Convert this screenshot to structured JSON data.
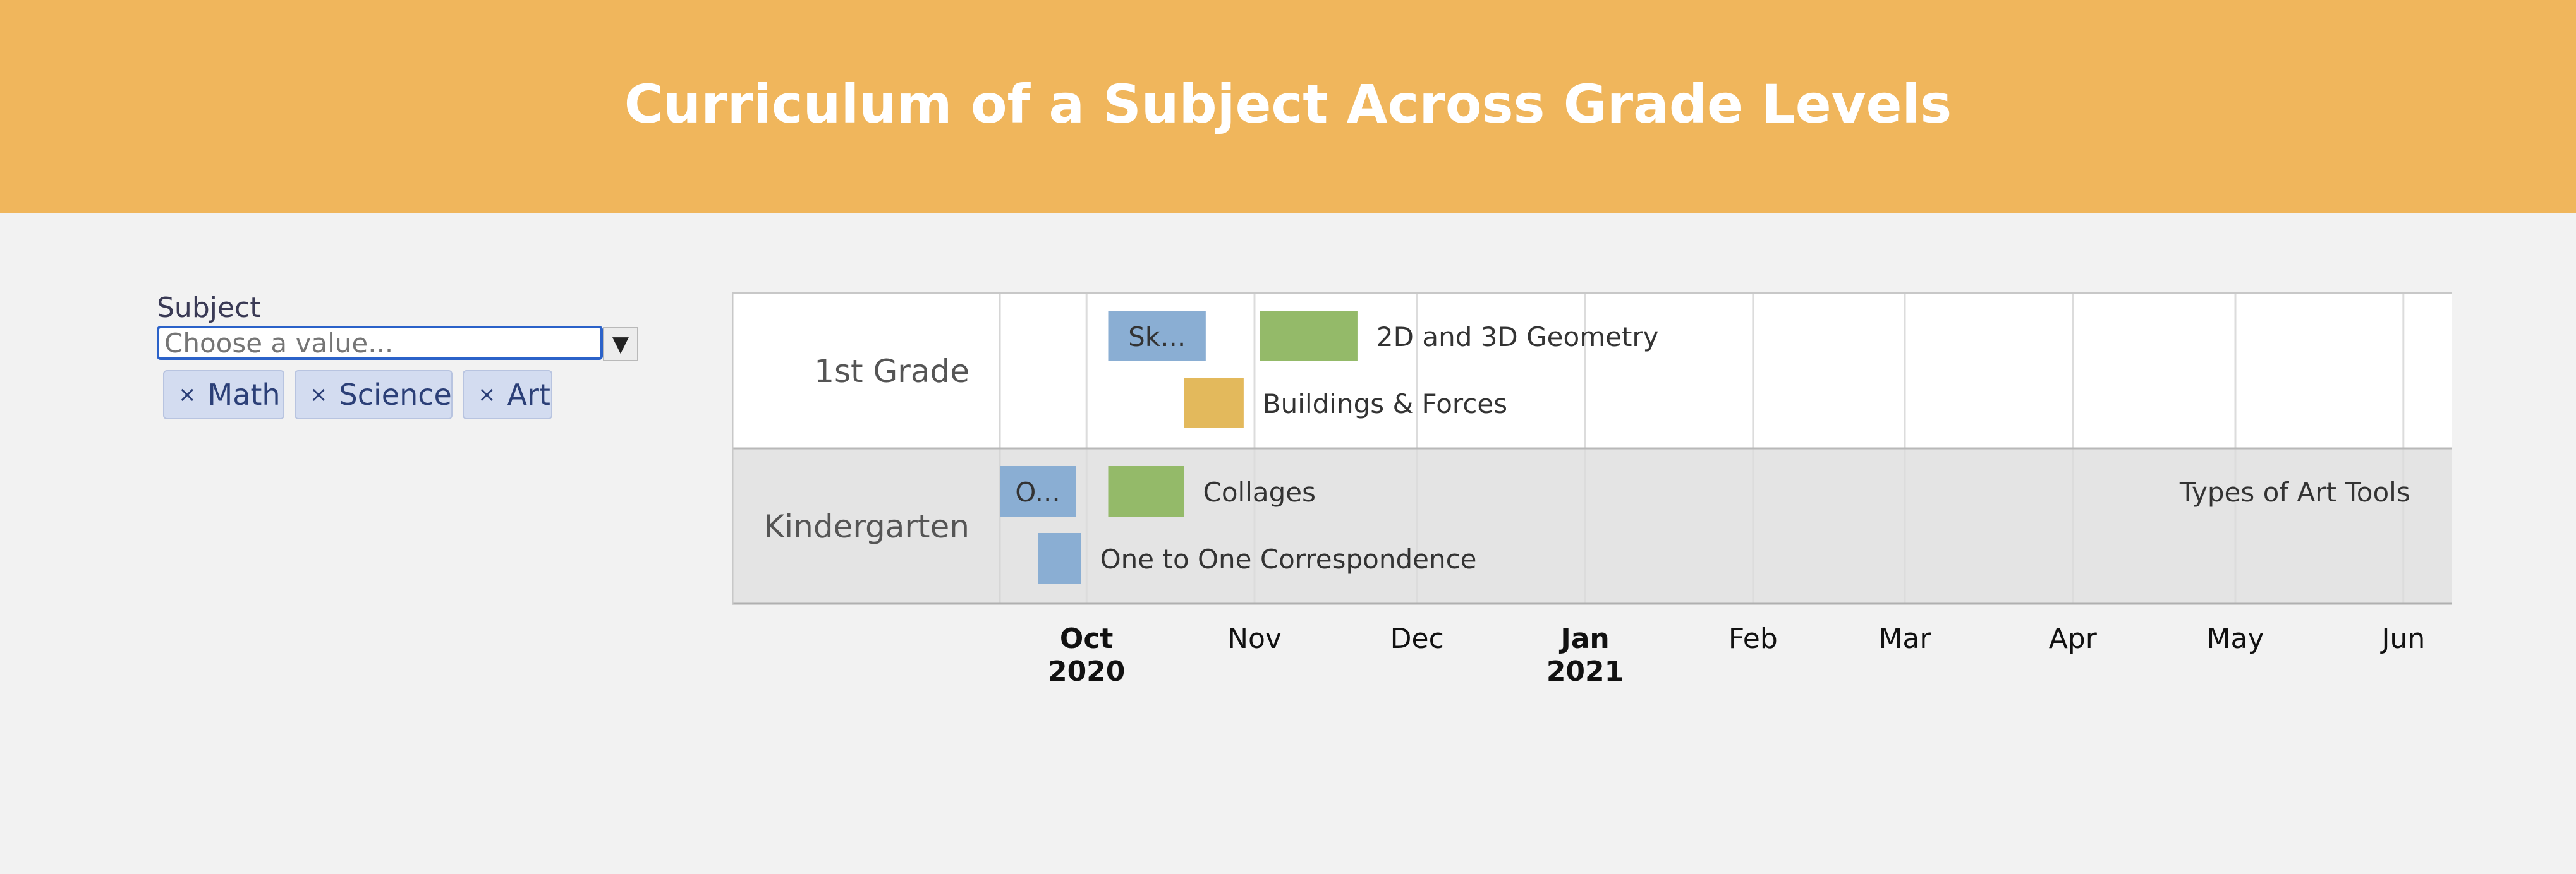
{
  "header": {
    "title": "Curriculum of a Subject Across Grade Levels",
    "background": "#f0b65c"
  },
  "filter": {
    "label": "Subject",
    "placeholder": "Choose a value...",
    "dropdown_icon": "▼",
    "selected": [
      {
        "remove_icon": "×",
        "label": "Math"
      },
      {
        "remove_icon": "×",
        "label": "Science"
      },
      {
        "remove_icon": "×",
        "label": "Art"
      }
    ]
  },
  "colors": {
    "math": "#8aaed3",
    "science": "#e3b95c",
    "art": "#94ba69",
    "row_first_grade": "#ffffff",
    "row_kindergarten": "#e4e4e4"
  },
  "chart_data": {
    "type": "timeline",
    "rows": [
      {
        "id": "first_grade",
        "label": "1st Grade"
      },
      {
        "id": "kindergarten",
        "label": "Kindergarten"
      }
    ],
    "x_range": [
      "2020-09-15",
      "2021-06-10"
    ],
    "tasks": [
      {
        "row": "first_grade",
        "lane": 0,
        "subject": "math",
        "label": "Sk...",
        "label_pos": "inside",
        "start": "2020-10-05",
        "end": "2020-10-23"
      },
      {
        "row": "first_grade",
        "lane": 0,
        "subject": "art",
        "label": "2D and 3D Geometry",
        "label_pos": "outside",
        "start": "2020-11-02",
        "end": "2020-11-20"
      },
      {
        "row": "first_grade",
        "lane": 1,
        "subject": "science",
        "label": "Buildings & Forces",
        "label_pos": "outside",
        "start": "2020-10-19",
        "end": "2020-10-30"
      },
      {
        "row": "kindergarten",
        "lane": 0,
        "subject": "math",
        "label": "O...",
        "label_pos": "inside",
        "start": "2020-09-15",
        "end": "2020-09-29"
      },
      {
        "row": "kindergarten",
        "lane": 0,
        "subject": "art",
        "label": "Collages",
        "label_pos": "outside",
        "start": "2020-10-05",
        "end": "2020-10-19"
      },
      {
        "row": "kindergarten",
        "lane": 1,
        "subject": "math",
        "label": "One to One Correspondence",
        "label_pos": "outside",
        "start": "2020-09-22",
        "end": "2020-09-30"
      },
      {
        "row": "kindergarten",
        "lane": 0,
        "subject": "art",
        "label": "Types of Art Tools",
        "label_pos": "outside",
        "start": "2021-05-12",
        "end": "2021-05-13"
      }
    ],
    "ticks": [
      {
        "date": "2020-10-01",
        "label": "Oct",
        "year": "2020"
      },
      {
        "date": "2020-11-01",
        "label": "Nov",
        "year": ""
      },
      {
        "date": "2020-12-01",
        "label": "Dec",
        "year": ""
      },
      {
        "date": "2021-01-01",
        "label": "Jan",
        "year": "2021"
      },
      {
        "date": "2021-02-01",
        "label": "Feb",
        "year": ""
      },
      {
        "date": "2021-03-01",
        "label": "Mar",
        "year": ""
      },
      {
        "date": "2021-04-01",
        "label": "Apr",
        "year": ""
      },
      {
        "date": "2021-05-01",
        "label": "May",
        "year": ""
      },
      {
        "date": "2021-06-01",
        "label": "Jun",
        "year": ""
      }
    ]
  }
}
